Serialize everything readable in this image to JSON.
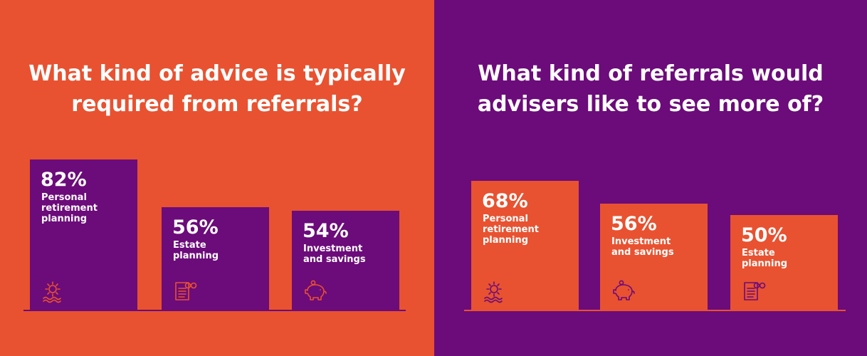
{
  "colors": {
    "orange": "#E85230",
    "purple": "#6C0B7A"
  },
  "chart_data": [
    {
      "type": "bar",
      "title": "What kind of advice is typically\nrequired from referrals?",
      "categories": [
        "Personal\nretirement\nplanning",
        "Estate\nplanning",
        "Investment\nand savings"
      ],
      "value_labels": [
        "82%",
        "56%",
        "54%"
      ],
      "values": [
        82,
        56,
        54
      ],
      "icons": [
        "sun-over-water-icon",
        "document-glasses-icon",
        "piggy-bank-icon"
      ],
      "background": "#E85230",
      "bar_color": "#6C0B7A",
      "ylim": [
        0,
        100
      ]
    },
    {
      "type": "bar",
      "title": "What kind of referrals would\nadvisers like to see more of?",
      "categories": [
        "Personal\nretirement\nplanning",
        "Investment\nand savings",
        "Estate\nplanning"
      ],
      "value_labels": [
        "68%",
        "56%",
        "50%"
      ],
      "values": [
        68,
        56,
        50
      ],
      "icons": [
        "sun-over-water-icon",
        "piggy-bank-icon",
        "document-glasses-icon"
      ],
      "background": "#6C0B7A",
      "bar_color": "#E85230",
      "ylim": [
        0,
        100
      ]
    }
  ]
}
